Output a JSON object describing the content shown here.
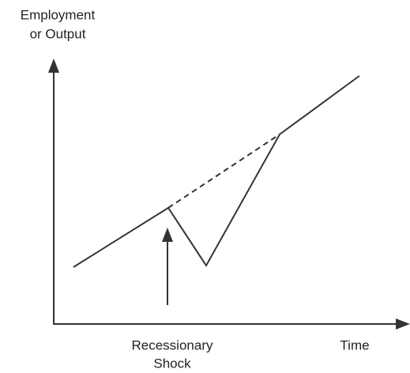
{
  "y_axis_label": {
    "lines": [
      "Employment",
      "or Output"
    ]
  },
  "x_axis_label": "Time",
  "annotation": {
    "lines": [
      "Recessionary",
      "Shock"
    ]
  }
}
